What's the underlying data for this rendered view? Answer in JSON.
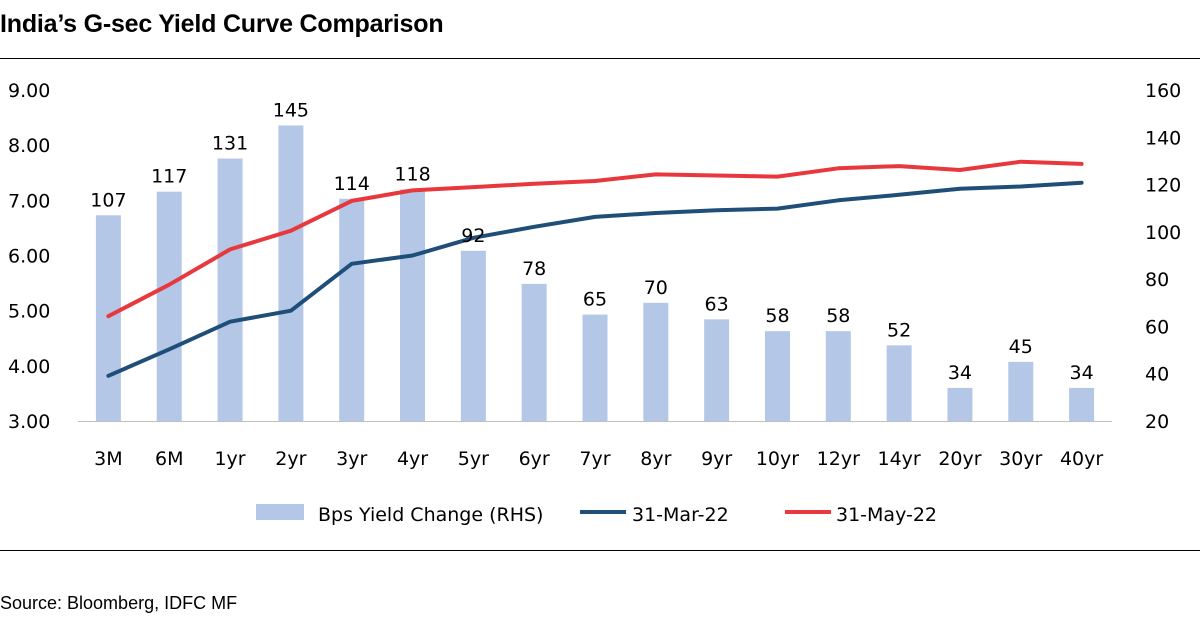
{
  "title": "India’s G-sec Yield Curve Comparison",
  "source": "Source: Bloomberg, IDFC MF",
  "chart_data": {
    "type": "bar+line",
    "categories": [
      "3M",
      "6M",
      "1yr",
      "2yr",
      "3yr",
      "4yr",
      "5yr",
      "6yr",
      "7yr",
      "8yr",
      "9yr",
      "10yr",
      "12yr",
      "14yr",
      "20yr",
      "30yr",
      "40yr"
    ],
    "left_axis": {
      "ylim": [
        3,
        9
      ],
      "ticks": [
        "3.00",
        "4.00",
        "5.00",
        "6.00",
        "7.00",
        "8.00",
        "9.00"
      ]
    },
    "right_axis": {
      "ylim": [
        20,
        160
      ],
      "ticks": [
        "20",
        "40",
        "60",
        "80",
        "100",
        "120",
        "140",
        "160"
      ]
    },
    "bars": {
      "name": "Bps Yield Change (RHS)",
      "color": "#b4c7e7",
      "axis": "right",
      "values": [
        107,
        117,
        131,
        145,
        114,
        118,
        92,
        78,
        65,
        70,
        63,
        58,
        58,
        52,
        34,
        45,
        34
      ]
    },
    "series": [
      {
        "name": "31-Mar-22",
        "color": "#1f4e79",
        "axis": "left",
        "values": [
          3.82,
          4.3,
          4.8,
          5.0,
          5.85,
          6.0,
          6.32,
          6.52,
          6.7,
          6.77,
          6.82,
          6.85,
          7.0,
          7.1,
          7.21,
          7.25,
          7.32
        ]
      },
      {
        "name": "31-May-22",
        "color": "#e8383d",
        "axis": "left",
        "values": [
          4.9,
          5.47,
          6.11,
          6.45,
          6.99,
          7.18,
          7.24,
          7.3,
          7.35,
          7.47,
          7.45,
          7.43,
          7.58,
          7.62,
          7.55,
          7.7,
          7.66
        ]
      }
    ],
    "grid": false,
    "legend": "bottom"
  }
}
